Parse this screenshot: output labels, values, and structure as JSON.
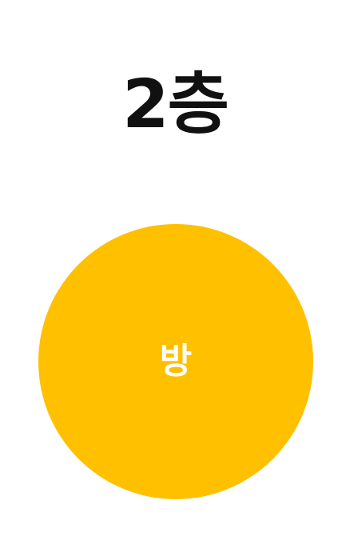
{
  "floor": {
    "title": "2층"
  },
  "room": {
    "label": "방",
    "color": "#FFC000"
  }
}
